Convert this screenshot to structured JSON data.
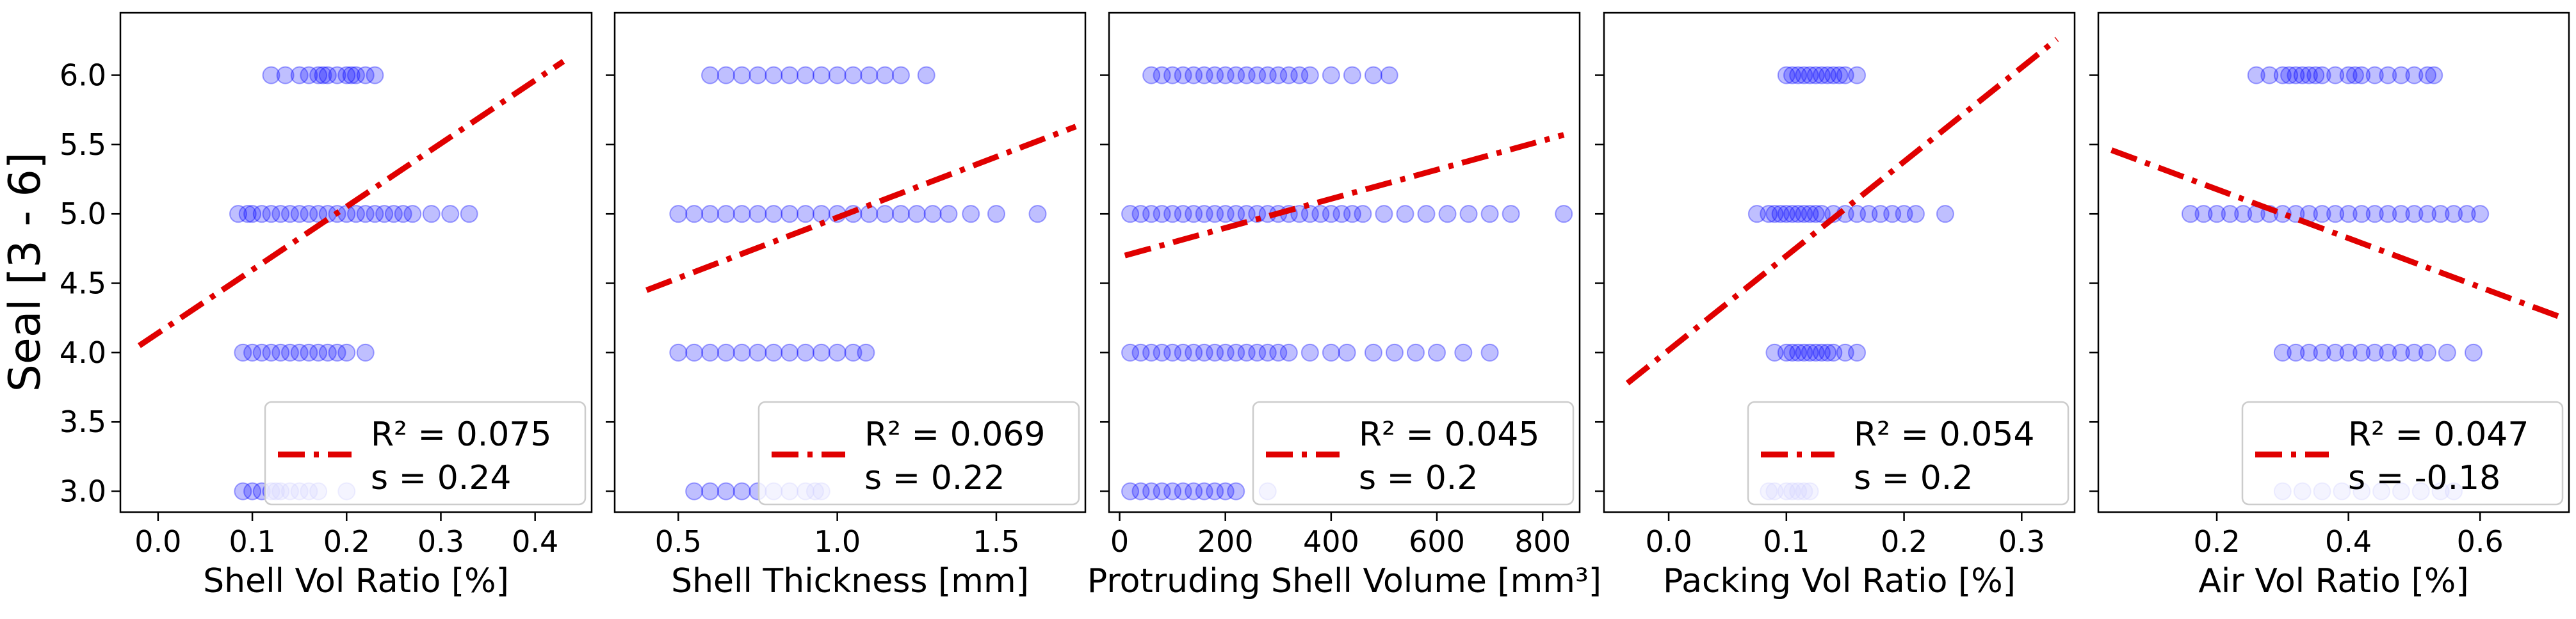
{
  "figure": {
    "ylabel": "Seal [3 - 6]",
    "point_color": "#0000ff",
    "fit_color": "#e00000"
  },
  "chart_data": [
    {
      "type": "scatter",
      "xlabel": "Shell Vol Ratio [%]",
      "xlim": [
        -0.04,
        0.46
      ],
      "ylim": [
        2.85,
        6.45
      ],
      "xticks": [
        "0.0",
        "0.1",
        "0.2",
        "0.3",
        "0.4"
      ],
      "xtick_values": [
        0.0,
        0.1,
        0.2,
        0.3,
        0.4
      ],
      "yticks": [
        "3.0",
        "3.5",
        "4.0",
        "4.5",
        "5.0",
        "5.5",
        "6.0"
      ],
      "ytick_values": [
        3.0,
        3.5,
        4.0,
        4.5,
        5.0,
        5.5,
        6.0
      ],
      "fit_line": {
        "x": [
          -0.02,
          0.43
        ],
        "y": [
          4.05,
          6.1
        ]
      },
      "legend": {
        "r2": "R² = 0.075",
        "s": "s   = 0.24"
      },
      "series": [
        {
          "y": 6,
          "x": [
            0.12,
            0.135,
            0.15,
            0.16,
            0.17,
            0.175,
            0.18,
            0.19,
            0.2,
            0.205,
            0.21,
            0.22,
            0.23
          ]
        },
        {
          "y": 5,
          "x": [
            0.085,
            0.095,
            0.1,
            0.11,
            0.12,
            0.13,
            0.14,
            0.15,
            0.16,
            0.17,
            0.18,
            0.19,
            0.2,
            0.21,
            0.22,
            0.23,
            0.24,
            0.25,
            0.26,
            0.27,
            0.29,
            0.31,
            0.33
          ]
        },
        {
          "y": 4,
          "x": [
            0.09,
            0.1,
            0.11,
            0.12,
            0.13,
            0.14,
            0.15,
            0.16,
            0.17,
            0.18,
            0.19,
            0.2,
            0.22
          ]
        },
        {
          "y": 3,
          "x": [
            0.09,
            0.1,
            0.11,
            0.12,
            0.125,
            0.13,
            0.14,
            0.15,
            0.16,
            0.17,
            0.2
          ]
        }
      ]
    },
    {
      "type": "scatter",
      "xlabel": "Shell Thickness [mm]",
      "xlim": [
        0.3,
        1.78
      ],
      "ylim": [
        2.85,
        6.45
      ],
      "xticks": [
        "0.5",
        "1.0",
        "1.5"
      ],
      "xtick_values": [
        0.5,
        1.0,
        1.5
      ],
      "yticks": [],
      "ytick_values": [
        3.0,
        3.5,
        4.0,
        4.5,
        5.0,
        5.5,
        6.0
      ],
      "fit_line": {
        "x": [
          0.4,
          1.75
        ],
        "y": [
          4.45,
          5.63
        ]
      },
      "legend": {
        "r2": "R² = 0.069",
        "s": "s   = 0.22"
      },
      "series": [
        {
          "y": 6,
          "x": [
            0.6,
            0.65,
            0.7,
            0.75,
            0.8,
            0.85,
            0.9,
            0.95,
            1.0,
            1.05,
            1.1,
            1.15,
            1.2,
            1.28
          ]
        },
        {
          "y": 5,
          "x": [
            0.5,
            0.55,
            0.6,
            0.65,
            0.7,
            0.75,
            0.8,
            0.85,
            0.9,
            0.95,
            1.0,
            1.05,
            1.1,
            1.15,
            1.2,
            1.25,
            1.3,
            1.35,
            1.42,
            1.5,
            1.63
          ]
        },
        {
          "y": 4,
          "x": [
            0.5,
            0.55,
            0.6,
            0.65,
            0.7,
            0.75,
            0.8,
            0.85,
            0.9,
            0.95,
            1.0,
            1.05,
            1.09
          ]
        },
        {
          "y": 3,
          "x": [
            0.55,
            0.6,
            0.65,
            0.7,
            0.75,
            0.8,
            0.85,
            0.9,
            0.93,
            0.95
          ]
        }
      ]
    },
    {
      "type": "scatter",
      "xlabel": "Protruding Shell Volume [mm³]",
      "xlim": [
        -20,
        870
      ],
      "ylim": [
        2.85,
        6.45
      ],
      "xticks": [
        "0",
        "200",
        "400",
        "600",
        "800"
      ],
      "xtick_values": [
        0,
        200,
        400,
        600,
        800
      ],
      "yticks": [],
      "ytick_values": [
        3.0,
        3.5,
        4.0,
        4.5,
        5.0,
        5.5,
        6.0
      ],
      "fit_line": {
        "x": [
          10,
          840
        ],
        "y": [
          4.7,
          5.57
        ]
      },
      "legend": {
        "r2": "R² = 0.045",
        "s": "s   = 0.2"
      },
      "series": [
        {
          "y": 6,
          "x": [
            60,
            80,
            100,
            120,
            140,
            160,
            180,
            200,
            220,
            240,
            260,
            280,
            300,
            320,
            340,
            360,
            400,
            440,
            480,
            510
          ]
        },
        {
          "y": 5,
          "x": [
            20,
            40,
            60,
            80,
            100,
            120,
            140,
            160,
            180,
            200,
            220,
            240,
            260,
            280,
            300,
            320,
            340,
            360,
            380,
            400,
            420,
            440,
            460,
            500,
            540,
            580,
            620,
            660,
            700,
            740,
            840
          ]
        },
        {
          "y": 4,
          "x": [
            20,
            40,
            60,
            80,
            100,
            120,
            140,
            160,
            180,
            200,
            220,
            240,
            260,
            280,
            300,
            320,
            360,
            400,
            430,
            480,
            520,
            560,
            600,
            650,
            700
          ]
        },
        {
          "y": 3,
          "x": [
            20,
            40,
            60,
            80,
            100,
            120,
            140,
            160,
            180,
            200,
            220,
            280
          ]
        }
      ]
    },
    {
      "type": "scatter",
      "xlabel": "Packing Vol Ratio [%]",
      "xlim": [
        -0.055,
        0.345
      ],
      "ylim": [
        2.85,
        6.45
      ],
      "xticks": [
        "0.0",
        "0.1",
        "0.2",
        "0.3"
      ],
      "xtick_values": [
        0.0,
        0.1,
        0.2,
        0.3
      ],
      "yticks": [],
      "ytick_values": [
        3.0,
        3.5,
        4.0,
        4.5,
        5.0,
        5.5,
        6.0
      ],
      "fit_line": {
        "x": [
          -0.035,
          0.33
        ],
        "y": [
          3.78,
          6.26
        ]
      },
      "legend": {
        "r2": "R² = 0.054",
        "s": "s   = 0.2"
      },
      "series": [
        {
          "y": 6,
          "x": [
            0.1,
            0.105,
            0.11,
            0.115,
            0.12,
            0.125,
            0.13,
            0.135,
            0.14,
            0.145,
            0.15,
            0.16
          ]
        },
        {
          "y": 5,
          "x": [
            0.075,
            0.085,
            0.09,
            0.095,
            0.1,
            0.105,
            0.11,
            0.115,
            0.12,
            0.125,
            0.13,
            0.14,
            0.15,
            0.16,
            0.17,
            0.18,
            0.19,
            0.2,
            0.21,
            0.235
          ]
        },
        {
          "y": 4,
          "x": [
            0.09,
            0.1,
            0.105,
            0.11,
            0.115,
            0.12,
            0.125,
            0.13,
            0.135,
            0.14,
            0.15,
            0.16
          ]
        },
        {
          "y": 3,
          "x": [
            0.085,
            0.09,
            0.1,
            0.105,
            0.11,
            0.115,
            0.12
          ]
        }
      ]
    },
    {
      "type": "scatter",
      "xlabel": "Air Vol Ratio [%]",
      "xlim": [
        0.02,
        0.735
      ],
      "ylim": [
        2.85,
        6.45
      ],
      "xticks": [
        "0.2",
        "0.4",
        "0.6"
      ],
      "xtick_values": [
        0.2,
        0.4,
        0.6
      ],
      "yticks": [],
      "ytick_values": [
        3.0,
        3.5,
        4.0,
        4.5,
        5.0,
        5.5,
        6.0
      ],
      "fit_line": {
        "x": [
          0.04,
          0.72
        ],
        "y": [
          5.46,
          4.26
        ]
      },
      "legend": {
        "r2": "R² = 0.047",
        "s": "s   = -0.18"
      },
      "series": [
        {
          "y": 6,
          "x": [
            0.26,
            0.28,
            0.3,
            0.31,
            0.32,
            0.33,
            0.34,
            0.35,
            0.36,
            0.38,
            0.4,
            0.41,
            0.42,
            0.44,
            0.46,
            0.48,
            0.5,
            0.52,
            0.53
          ]
        },
        {
          "y": 5,
          "x": [
            0.16,
            0.18,
            0.2,
            0.22,
            0.24,
            0.26,
            0.28,
            0.3,
            0.32,
            0.34,
            0.36,
            0.38,
            0.4,
            0.42,
            0.44,
            0.46,
            0.48,
            0.5,
            0.52,
            0.54,
            0.56,
            0.58,
            0.6
          ]
        },
        {
          "y": 4,
          "x": [
            0.3,
            0.32,
            0.34,
            0.36,
            0.38,
            0.4,
            0.42,
            0.44,
            0.46,
            0.48,
            0.5,
            0.52,
            0.55,
            0.59
          ]
        },
        {
          "y": 3,
          "x": [
            0.3,
            0.33,
            0.36,
            0.39,
            0.42,
            0.45,
            0.48,
            0.51,
            0.54,
            0.56
          ]
        }
      ]
    }
  ]
}
